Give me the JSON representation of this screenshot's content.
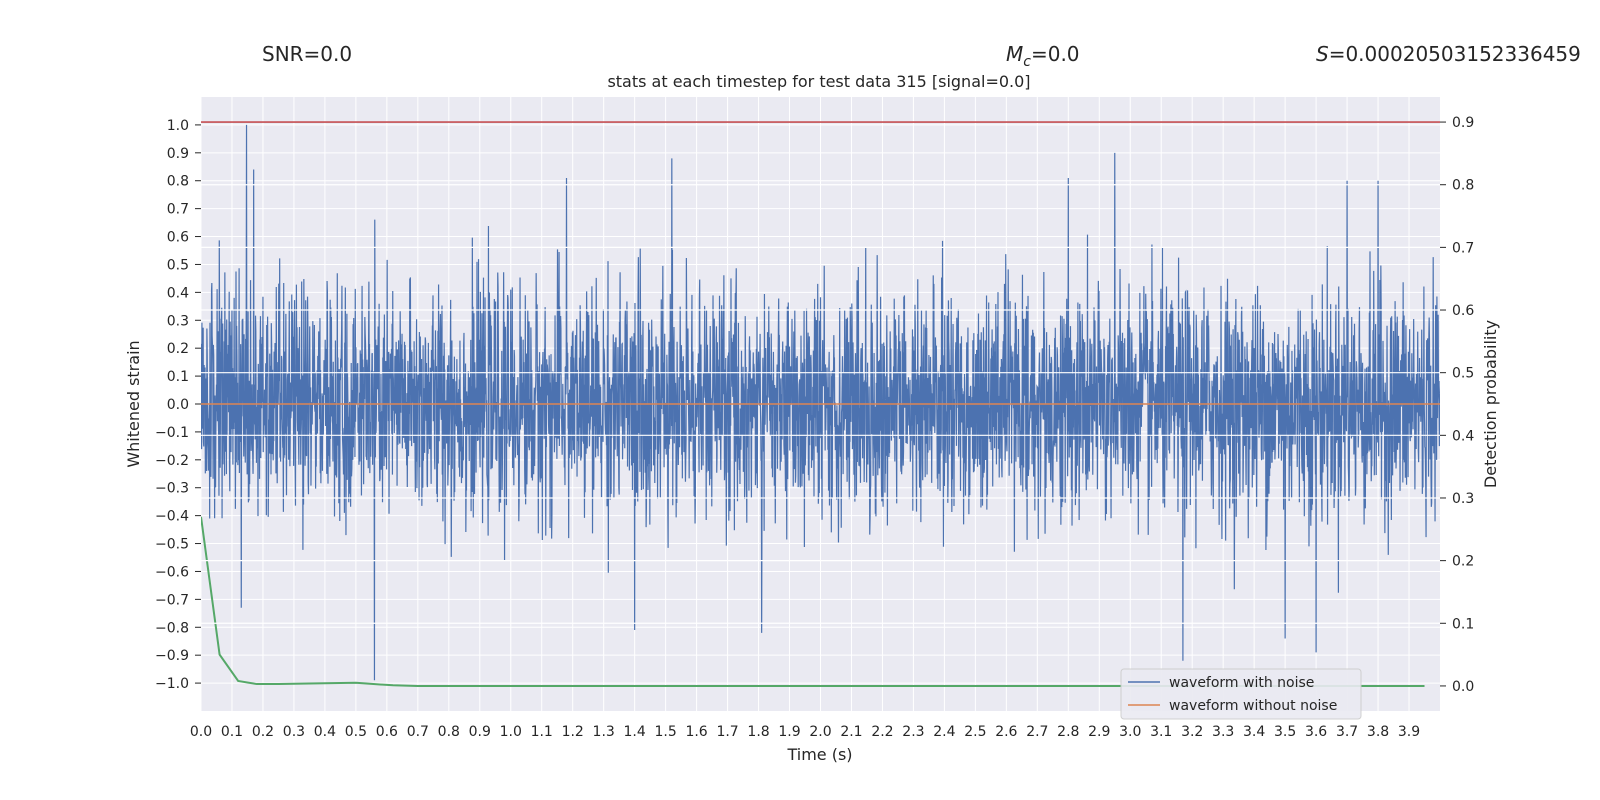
{
  "chart_data": {
    "type": "line",
    "title": "stats at each timestep for test data 315 [signal=0.0]",
    "header": {
      "snr": "SNR=0.0",
      "mc_symbol": "M",
      "mc_sub": "c",
      "mc_value": "=0.0",
      "s_symbol": "S",
      "s_value": "=0.00020503152336459"
    },
    "xlabel": "Time (s)",
    "ylabel_left": "Whitened strain",
    "ylabel_right": "Detection probability",
    "xlim": [
      0.0,
      4.0
    ],
    "ylim_left": [
      -1.1,
      1.1
    ],
    "ylim_right": [
      -0.04,
      0.94
    ],
    "x_ticks": [
      "0.0",
      "0.1",
      "0.2",
      "0.3",
      "0.4",
      "0.5",
      "0.6",
      "0.7",
      "0.8",
      "0.9",
      "1.0",
      "1.1",
      "1.2",
      "1.3",
      "1.4",
      "1.5",
      "1.6",
      "1.7",
      "1.8",
      "1.9",
      "2.0",
      "2.1",
      "2.2",
      "2.3",
      "2.4",
      "2.5",
      "2.6",
      "2.7",
      "2.8",
      "2.9",
      "3.0",
      "3.1",
      "3.2",
      "3.3",
      "3.4",
      "3.5",
      "3.6",
      "3.7",
      "3.8",
      "3.9"
    ],
    "y_ticks_left": [
      "1.0",
      "0.9",
      "0.8",
      "0.7",
      "0.6",
      "0.5",
      "0.4",
      "0.3",
      "0.2",
      "0.1",
      "0.0",
      "−0.1",
      "−0.2",
      "−0.3",
      "−0.4",
      "−0.5",
      "−0.6",
      "−0.7",
      "−0.8",
      "−0.9",
      "−1.0"
    ],
    "y_ticks_right": [
      "0.9",
      "0.8",
      "0.7",
      "0.6",
      "0.5",
      "0.4",
      "0.3",
      "0.2",
      "0.1",
      "0.0"
    ],
    "threshold_line": {
      "value": 0.9,
      "color": "#c44e52"
    },
    "series": [
      {
        "name": "waveform with noise",
        "color": "#4c72b0",
        "axis": "left",
        "description": "noisy whitened strain, amplitude roughly within [-0.9, 1.0]"
      },
      {
        "name": "waveform without noise",
        "color": "#dd8452",
        "axis": "left",
        "values_constant": 0.0
      },
      {
        "color": "#55a868",
        "axis": "right",
        "x": [
          0.0,
          0.06,
          0.12,
          0.18,
          0.25,
          0.5,
          0.62,
          0.7,
          1.0,
          2.0,
          3.0,
          3.95
        ],
        "y": [
          0.27,
          0.05,
          0.008,
          0.003,
          0.003,
          0.005,
          0.001,
          0.0,
          0.0,
          0.0,
          0.0,
          0.0
        ]
      }
    ],
    "noise_peaks": [
      {
        "x": 0.147,
        "y": 1.0
      },
      {
        "x": 0.17,
        "y": 0.84
      },
      {
        "x": 0.56,
        "y": -0.99
      },
      {
        "x": 1.18,
        "y": 0.81
      },
      {
        "x": 1.52,
        "y": 0.88
      },
      {
        "x": 1.4,
        "y": -0.81
      },
      {
        "x": 1.81,
        "y": -0.82
      },
      {
        "x": 2.95,
        "y": 0.9
      },
      {
        "x": 3.17,
        "y": -0.92
      },
      {
        "x": 3.6,
        "y": -0.89
      },
      {
        "x": 2.8,
        "y": 0.81
      },
      {
        "x": 3.8,
        "y": 0.8
      },
      {
        "x": 0.13,
        "y": -0.73
      },
      {
        "x": 3.5,
        "y": -0.84
      },
      {
        "x": 3.7,
        "y": 0.8
      }
    ],
    "legend": {
      "position": "lower-right"
    },
    "grid": true,
    "background": "#eaeaf2"
  }
}
